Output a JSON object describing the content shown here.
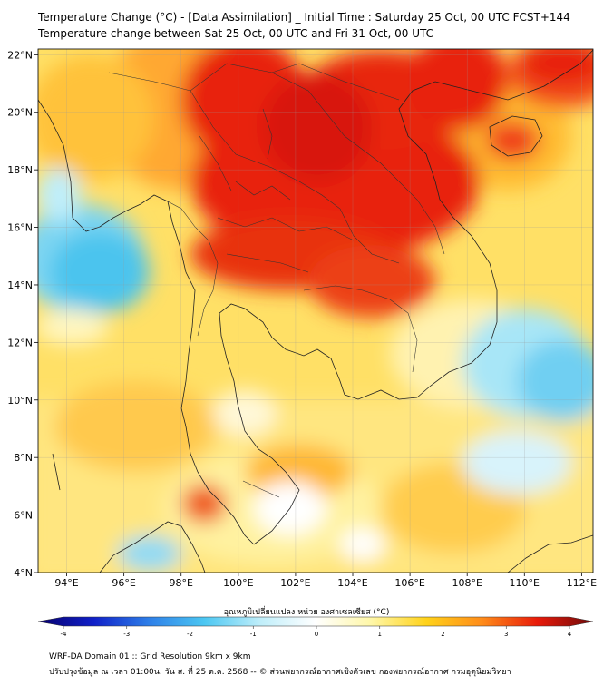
{
  "title": {
    "line1": "Temperature Change (°C) - [Data Assimilation] _ Initial Time : Saturday 25 Oct, 00 UTC FCST+144",
    "line2": "Temperature change between Sat 25 Oct, 00 UTC and Fri 31 Oct, 00 UTC"
  },
  "map": {
    "lat_labels": [
      "22°N",
      "20°N",
      "18°N",
      "16°N",
      "14°N",
      "12°N",
      "10°N",
      "8°N",
      "6°N",
      "4°N"
    ],
    "lon_labels": [
      "94°E",
      "96°E",
      "98°E",
      "100°E",
      "102°E",
      "104°E",
      "106°E",
      "108°E",
      "110°E",
      "112°E"
    ],
    "lat_range": [
      4,
      22.2
    ],
    "lon_range": [
      93,
      112.4
    ],
    "gridlines": true
  },
  "colorbar": {
    "title": "อุณหภูมิเปลี่ยนแปลง หน่วย องศาเซลเซียส (°C)",
    "ticks": [
      "-4",
      "-3",
      "-2",
      "-1",
      "0",
      "1",
      "2",
      "3",
      "4"
    ],
    "range": [
      -4,
      4
    ],
    "colors": [
      "#08006e",
      "#1020c8",
      "#2e7fe8",
      "#4cc7f2",
      "#bfeefa",
      "#ffffff",
      "#fff7a8",
      "#ffd21a",
      "#ff8c1a",
      "#e81a0a",
      "#6e0a0a"
    ]
  },
  "footer": {
    "line1": "WRF-DA Domain 01 :: Grid Resolution 9km x 9km",
    "line2": "ปรับปรุงข้อมูล ณ เวลา 01:00น. วัน ส. ที่ 25 ต.ค. 2568 -- © ส่วนพยากรณ์อากาศเชิงตัวเลข กองพยากรณ์อากาศ กรมอุตุนิยมวิทยา"
  }
}
